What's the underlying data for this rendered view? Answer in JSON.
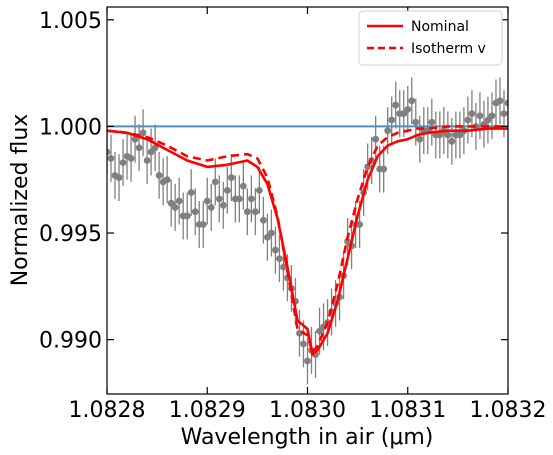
{
  "chart_data": {
    "type": "line",
    "xlabel": "Wavelength in air (μm)",
    "ylabel": "Normalized flux",
    "xlim": [
      1.0828,
      1.0832
    ],
    "ylim": [
      0.98745,
      1.0056
    ],
    "x_ticks": [
      "1.0828",
      "1.0829",
      "1.0830",
      "1.0831",
      "1.0832"
    ],
    "x_tick_values": [
      1.0828,
      1.0829,
      1.083,
      1.0831,
      1.0832
    ],
    "y_ticks": [
      "0.990",
      "0.995",
      "1.000",
      "1.005"
    ],
    "y_tick_values": [
      0.99,
      0.995,
      1.0,
      1.005
    ],
    "reference_line": {
      "y": 1.0,
      "color": "#4a90c8"
    },
    "legend": {
      "position": "top-right",
      "entries": [
        "Nominal",
        "Isotherm v"
      ]
    },
    "series": [
      {
        "name": "Nominal",
        "style": "solid",
        "color": "#ff0000",
        "x": [
          1.0828,
          1.08282,
          1.08284,
          1.08286,
          1.08288,
          1.0829,
          1.08292,
          1.08294,
          1.08295,
          1.08296,
          1.08297,
          1.08298,
          1.08299,
          1.083,
          1.083005,
          1.08301,
          1.08302,
          1.08303,
          1.08304,
          1.08305,
          1.08306,
          1.08307,
          1.08308,
          1.08309,
          1.0831,
          1.08311,
          1.08312,
          1.08314,
          1.08316,
          1.08318,
          1.0832
        ],
        "y": [
          0.9998,
          0.9997,
          0.9994,
          0.9989,
          0.9984,
          0.9981,
          0.9982,
          0.9984,
          0.9981,
          0.9973,
          0.9957,
          0.9934,
          0.9909,
          0.9905,
          0.9893,
          0.9895,
          0.9903,
          0.9918,
          0.9938,
          0.9958,
          0.9975,
          0.9986,
          0.9991,
          0.9993,
          0.9994,
          0.9996,
          0.9997,
          0.9998,
          0.9998,
          0.9999,
          0.9999
        ]
      },
      {
        "name": "Isotherm v",
        "style": "dashed",
        "color": "#ff0000",
        "x": [
          1.0828,
          1.08282,
          1.08284,
          1.08286,
          1.08288,
          1.0829,
          1.08292,
          1.08294,
          1.08295,
          1.08296,
          1.08297,
          1.08298,
          1.08299,
          1.083,
          1.083005,
          1.08301,
          1.08302,
          1.08303,
          1.08304,
          1.08305,
          1.08306,
          1.08307,
          1.08308,
          1.08309,
          1.0831,
          1.08311,
          1.08312,
          1.08314,
          1.08316,
          1.08318,
          1.0832
        ],
        "y": [
          0.9998,
          0.9997,
          0.9995,
          0.9991,
          0.9986,
          0.9984,
          0.9986,
          0.9987,
          0.9985,
          0.9976,
          0.9958,
          0.9932,
          0.9905,
          0.9902,
          0.9894,
          0.9897,
          0.9908,
          0.9926,
          0.9948,
          0.9966,
          0.9981,
          0.9991,
          0.9995,
          0.9997,
          0.9998,
          0.9999,
          0.9999,
          1.0,
          1.0,
          1.0,
          1.0
        ]
      },
      {
        "name": "",
        "style": "points",
        "color": "#808080",
        "x": [
          1.0828,
          1.082804,
          1.082808,
          1.082812,
          1.082816,
          1.08282,
          1.082824,
          1.082828,
          1.082832,
          1.082836,
          1.08284,
          1.082844,
          1.082848,
          1.082852,
          1.082856,
          1.08286,
          1.082864,
          1.082868,
          1.082872,
          1.082876,
          1.08288,
          1.082884,
          1.082888,
          1.082892,
          1.082896,
          1.0829,
          1.082904,
          1.082908,
          1.082912,
          1.082916,
          1.08292,
          1.082924,
          1.082928,
          1.082932,
          1.082936,
          1.08294,
          1.082944,
          1.082948,
          1.082952,
          1.082956,
          1.08296,
          1.082964,
          1.082968,
          1.082972,
          1.082976,
          1.08298,
          1.082984,
          1.082988,
          1.082992,
          1.082996,
          1.083,
          1.083004,
          1.083008,
          1.083012,
          1.083016,
          1.08302,
          1.083024,
          1.083028,
          1.083032,
          1.083036,
          1.08304,
          1.083044,
          1.083048,
          1.083052,
          1.083056,
          1.08306,
          1.083064,
          1.083068,
          1.083072,
          1.083076,
          1.08308,
          1.083084,
          1.083088,
          1.083092,
          1.083096,
          1.0831,
          1.083104,
          1.083108,
          1.083112,
          1.083116,
          1.08312,
          1.083124,
          1.083128,
          1.083132,
          1.083136,
          1.08314,
          1.083144,
          1.083148,
          1.083152,
          1.083156,
          1.08316,
          1.083164,
          1.083168,
          1.083172,
          1.083176,
          1.08318,
          1.083184,
          1.083188,
          1.083192,
          1.083196,
          1.0832
        ],
        "y": [
          0.9988,
          0.9985,
          0.9977,
          0.9976,
          0.9983,
          0.9986,
          0.9985,
          0.9994,
          0.999,
          0.9997,
          0.9984,
          0.9988,
          0.999,
          0.9977,
          0.9974,
          0.9975,
          0.9964,
          0.9962,
          0.9965,
          0.9958,
          0.9958,
          0.9969,
          0.996,
          0.9954,
          0.9954,
          0.9965,
          0.9962,
          0.9974,
          0.9966,
          0.9963,
          0.997,
          0.9976,
          0.9966,
          0.9966,
          0.9972,
          0.996,
          0.9966,
          0.996,
          0.997,
          0.9956,
          0.9948,
          0.995,
          0.9942,
          0.9938,
          0.9934,
          0.9929,
          0.9924,
          0.9918,
          0.9903,
          0.9898,
          0.989,
          0.9895,
          0.9893,
          0.9904,
          0.9906,
          0.9908,
          0.9913,
          0.9917,
          0.992,
          0.993,
          0.9946,
          0.9944,
          0.9954,
          0.9954,
          0.9969,
          0.9981,
          0.9984,
          0.9994,
          0.998,
          0.998,
          0.9998,
          1.0003,
          1.001,
          1.0006,
          1.0006,
          1.0008,
          1.0012,
          1.0002,
          0.9994,
          0.9998,
          0.9998,
          1.0002,
          0.9996,
          0.9996,
          0.9998,
          0.9996,
          0.9993,
          0.9996,
          0.9996,
          0.9998,
          1.0003,
          1.0006,
          1.0,
          1.0005,
          1.0001,
          1.0003,
          1.0005,
          1.0011,
          1.0012,
          1.0006,
          1.0011
        ],
        "yerr": 0.0011
      }
    ]
  }
}
